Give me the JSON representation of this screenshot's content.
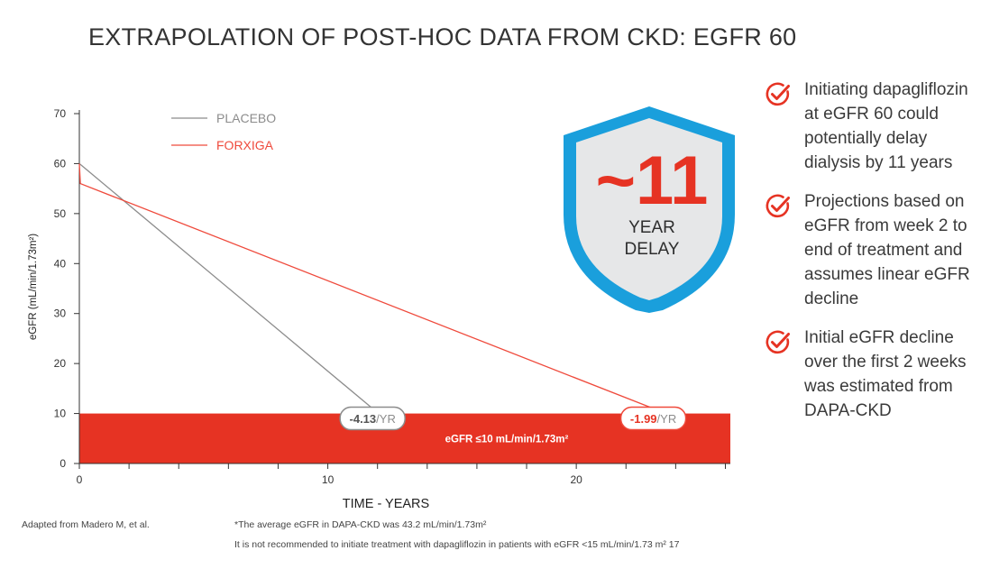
{
  "title": "EXTRAPOLATION OF POST-HOC DATA FROM CKD: EGFR 60",
  "colors": {
    "placebo": "#8c8c8c",
    "forxiga": "#ef4a3c",
    "band": "#e63323",
    "shield_blue": "#1a9fdc",
    "shield_fill": "#e6e7e8"
  },
  "chart_data": {
    "type": "line",
    "title": "",
    "xlabel": "TIME - YEARS",
    "ylabel": "eGFR (mL/min/1.73m²)",
    "xlim": [
      0,
      26.2
    ],
    "ylim": [
      0,
      70
    ],
    "xticks": [
      0,
      10,
      20
    ],
    "yticks": [
      0,
      10,
      20,
      30,
      40,
      50,
      60,
      70
    ],
    "grid": false,
    "legend_position": "top-left",
    "series": [
      {
        "name": "PLACEBO",
        "color": "#8c8c8c",
        "x": [
          0,
          11.8
        ],
        "y": [
          60,
          11
        ]
      },
      {
        "name": "FORXIGA",
        "color": "#ef4a3c",
        "x": [
          0,
          0.04,
          23.1
        ],
        "y": [
          60,
          56,
          11
        ]
      }
    ],
    "threshold_band": {
      "y_from": 0,
      "y_to": 10,
      "label": "eGFR ≤10 mL/min/1.73m²"
    },
    "annotations": [
      {
        "series": "PLACEBO",
        "value": "-4.13",
        "unit": "/YR"
      },
      {
        "series": "FORXIGA",
        "value": "-1.99",
        "unit": "/YR"
      }
    ]
  },
  "badge": {
    "number": "~11",
    "line1": "YEAR",
    "line2": "DELAY"
  },
  "bullets": [
    "Initiating dapagliflozin at eGFR 60 could potentially delay dialysis by 11 years",
    "Projections based on eGFR from week 2 to end of treatment and assumes linear eGFR decline",
    "Initial eGFR decline over the first 2 weeks was estimated from DAPA-CKD"
  ],
  "footnotes": {
    "source": "Adapted from Madero M, et al.",
    "note1": "*The average eGFR in DAPA-CKD was 43.2 mL/min/1.73m²",
    "note2": "It is not recommended to initiate treatment with dapagliflozin in patients with eGFR <15 mL/min/1.73 m² 17"
  }
}
